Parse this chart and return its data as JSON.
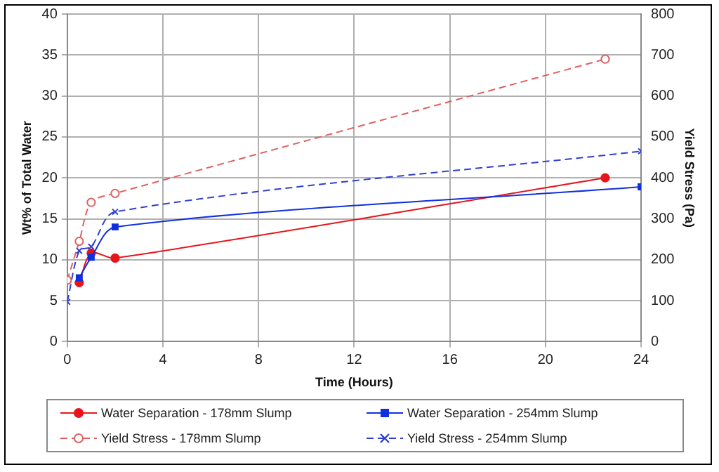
{
  "chart_data": {
    "type": "line",
    "xlabel": "Time (Hours)",
    "ylabel": "Wt% of Total Water",
    "y2label": "Yield Stress (Pa)",
    "xlim": [
      0,
      24
    ],
    "xticks": [
      0,
      4,
      8,
      12,
      16,
      20,
      24
    ],
    "ylim": [
      0,
      40
    ],
    "yticks": [
      0,
      5,
      10,
      15,
      20,
      25,
      30,
      35,
      40
    ],
    "y2lim": [
      0,
      800
    ],
    "y2ticks": [
      0,
      100,
      200,
      300,
      400,
      500,
      600,
      700,
      800
    ],
    "grid": true,
    "legend": "bottom",
    "series": [
      {
        "name": "Water Separation - 178mm Slump",
        "color": "#e8141c",
        "marker": "circle",
        "line_style": "solid",
        "x": [
          0.5,
          1,
          2,
          22.5
        ],
        "values": [
          7.2,
          10.8,
          10.2,
          20
        ]
      },
      {
        "name": "Water Separation - 254mm Slump",
        "color": "#1030e0",
        "marker": "square",
        "line_style": "solid",
        "x": [
          0.5,
          1,
          2,
          24
        ],
        "values": [
          7.8,
          10.3,
          14,
          18.9
        ]
      },
      {
        "name": "Yield Stress - 178mm Slump",
        "color": "#e06060",
        "marker": "circle-open",
        "line_style": "dashed",
        "axis": "y2",
        "x": [
          0,
          0.5,
          1,
          2,
          22.5
        ],
        "values": [
          150,
          245,
          340,
          362,
          690
        ]
      },
      {
        "name": "Yield Stress - 254mm Slump",
        "color": "#3040d0",
        "marker": "cross",
        "line_style": "dashed",
        "axis": "y2",
        "x": [
          0,
          0.5,
          1,
          2,
          24
        ],
        "values": [
          97,
          222,
          232,
          317,
          465
        ]
      }
    ]
  }
}
